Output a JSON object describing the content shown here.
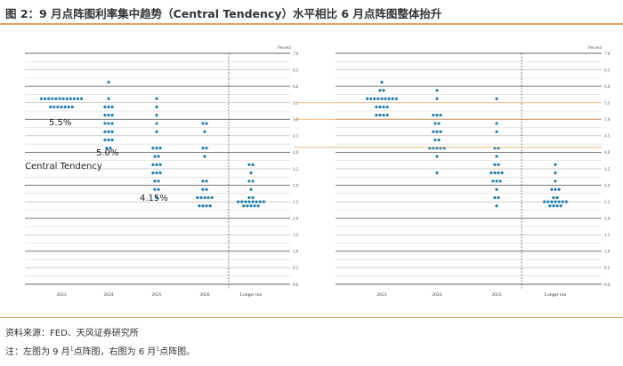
{
  "title": "图 2：9 月点阵图利率集中趋势（Central Tendency）水平相比 6 月点阵图整体抬升",
  "source": "资料来源：FED、天风证券研究所",
  "note": {
    "prefix": "注：左图为 9 月",
    "mark1": "1",
    "mid": "点阵图，右图为 6 月",
    "mark2": "1",
    "suffix": "点阵图。"
  },
  "colors": {
    "dot": "#1f7fb0",
    "accent": "#e5a35a",
    "grid": "#cfcfcf"
  },
  "chart_data": [
    {
      "type": "scatter",
      "ylabel": "Percent",
      "ylim": [
        0,
        7.0
      ],
      "yticks": [
        0.0,
        0.5,
        1.0,
        1.5,
        2.0,
        2.5,
        3.0,
        3.5,
        4.0,
        4.5,
        5.0,
        5.5,
        6.0,
        6.5,
        7.0
      ],
      "categories": [
        "2023",
        "2024",
        "2025",
        "2026",
        "Longer run"
      ],
      "columns": [
        {
          "category": "2023",
          "dots": [
            [
              5.625,
              12
            ],
            [
              5.375,
              7
            ]
          ]
        },
        {
          "category": "2024",
          "dots": [
            [
              6.125,
              1
            ],
            [
              5.625,
              1
            ],
            [
              5.375,
              3
            ],
            [
              5.125,
              3
            ],
            [
              4.875,
              3
            ],
            [
              4.625,
              3
            ],
            [
              4.375,
              3
            ],
            [
              4.125,
              2
            ]
          ]
        },
        {
          "category": "2025",
          "dots": [
            [
              5.625,
              1
            ],
            [
              5.375,
              1
            ],
            [
              5.125,
              1
            ],
            [
              4.875,
              1
            ],
            [
              4.625,
              1
            ],
            [
              4.125,
              3
            ],
            [
              3.875,
              2
            ],
            [
              3.625,
              3
            ],
            [
              3.375,
              3
            ],
            [
              3.125,
              2
            ],
            [
              2.875,
              2
            ],
            [
              2.625,
              1
            ]
          ]
        },
        {
          "category": "2026",
          "dots": [
            [
              4.875,
              2
            ],
            [
              4.625,
              1
            ],
            [
              4.125,
              2
            ],
            [
              3.875,
              1
            ],
            [
              3.125,
              2
            ],
            [
              2.875,
              2
            ],
            [
              2.625,
              5
            ],
            [
              2.375,
              4
            ]
          ]
        },
        {
          "category": "Longer run",
          "dots": [
            [
              3.625,
              2
            ],
            [
              3.375,
              1
            ],
            [
              3.125,
              2
            ],
            [
              2.875,
              1
            ],
            [
              2.625,
              2
            ],
            [
              2.5,
              8
            ],
            [
              2.375,
              5
            ]
          ]
        }
      ],
      "annotations": [
        "5.5%",
        "5.0%",
        "Central Tendency",
        "4.15%"
      ]
    },
    {
      "type": "scatter",
      "ylabel": "Percent",
      "ylim": [
        0,
        7.0
      ],
      "yticks": [
        0.0,
        0.5,
        1.0,
        1.5,
        2.0,
        2.5,
        3.0,
        3.5,
        4.0,
        4.5,
        5.0,
        5.5,
        6.0,
        6.5,
        7.0
      ],
      "categories": [
        "2023",
        "2024",
        "2025",
        "Longer run"
      ],
      "columns": [
        {
          "category": "2023",
          "dots": [
            [
              6.125,
              1
            ],
            [
              5.875,
              2
            ],
            [
              5.625,
              9
            ],
            [
              5.375,
              4
            ],
            [
              5.125,
              4
            ]
          ]
        },
        {
          "category": "2024",
          "dots": [
            [
              5.875,
              1
            ],
            [
              5.625,
              1
            ],
            [
              5.125,
              3
            ],
            [
              4.875,
              2
            ],
            [
              4.625,
              3
            ],
            [
              4.375,
              2
            ],
            [
              4.125,
              5
            ],
            [
              3.875,
              1
            ],
            [
              3.375,
              1
            ]
          ]
        },
        {
          "category": "2025",
          "dots": [
            [
              5.625,
              1
            ],
            [
              4.875,
              1
            ],
            [
              4.625,
              1
            ],
            [
              4.125,
              2
            ],
            [
              3.875,
              1
            ],
            [
              3.625,
              2
            ],
            [
              3.375,
              4
            ],
            [
              3.125,
              3
            ],
            [
              2.875,
              1
            ],
            [
              2.625,
              2
            ],
            [
              2.375,
              1
            ]
          ]
        },
        {
          "category": "Longer run",
          "dots": [
            [
              3.625,
              1
            ],
            [
              3.375,
              1
            ],
            [
              3.125,
              1
            ],
            [
              2.875,
              3
            ],
            [
              2.625,
              2
            ],
            [
              2.5,
              7
            ],
            [
              2.375,
              4
            ]
          ]
        }
      ]
    }
  ]
}
